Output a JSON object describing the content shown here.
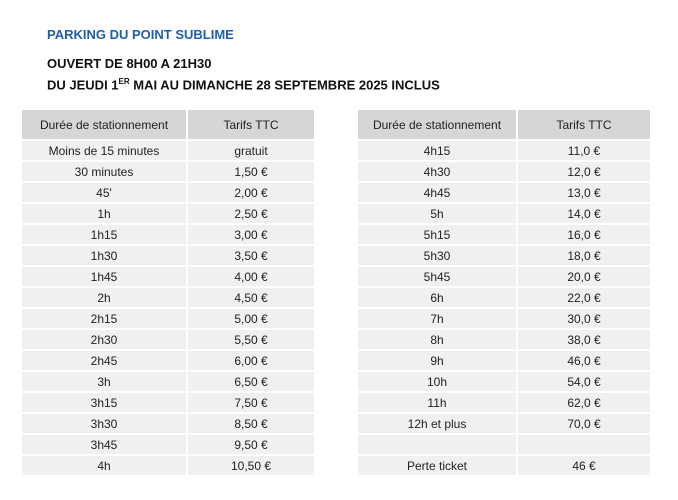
{
  "header": {
    "title": "PARKING DU POINT SUBLIME",
    "hours": "OUVERT DE 8H00 A 21H30",
    "period": [
      "DU JEUDI 1",
      "ER",
      " MAI AU DIMANCHE 28 SEPTEMBRE 2025 INCLUS"
    ]
  },
  "tables": [
    {
      "columns": [
        "Durée de stationnement",
        "Tarifs TTC"
      ],
      "rows": [
        [
          "Moins de 15 minutes",
          "gratuit"
        ],
        [
          "30 minutes",
          "1,50 €"
        ],
        [
          "45'",
          "2,00 €"
        ],
        [
          "1h",
          "2,50 €"
        ],
        [
          "1h15",
          "3,00 €"
        ],
        [
          "1h30",
          "3,50 €"
        ],
        [
          "1h45",
          "4,00 €"
        ],
        [
          "2h",
          "4,50 €"
        ],
        [
          "2h15",
          "5,00 €"
        ],
        [
          "2h30",
          "5,50 €"
        ],
        [
          "2h45",
          "6,00 €"
        ],
        [
          "3h",
          "6,50 €"
        ],
        [
          "3h15",
          "7,50 €"
        ],
        [
          "3h30",
          "8,50 €"
        ],
        [
          "3h45",
          "9,50 €"
        ],
        [
          "4h",
          "10,50 €"
        ]
      ]
    },
    {
      "columns": [
        "Durée de stationnement",
        "Tarifs TTC"
      ],
      "rows": [
        [
          "4h15",
          "11,0 €"
        ],
        [
          "4h30",
          "12,0 €"
        ],
        [
          "4h45",
          "13,0 €"
        ],
        [
          "5h",
          "14,0 €"
        ],
        [
          "5h15",
          "16,0 €"
        ],
        [
          "5h30",
          "18,0 €"
        ],
        [
          "5h45",
          "20,0 €"
        ],
        [
          "6h",
          "22,0 €"
        ],
        [
          "7h",
          "30,0 €"
        ],
        [
          "8h",
          "38,0 €"
        ],
        [
          "9h",
          "46,0 €"
        ],
        [
          "10h",
          "54,0 €"
        ],
        [
          "11h",
          "62,0 €"
        ],
        [
          "12h et plus",
          "70,0 €"
        ],
        [
          null,
          null
        ],
        [
          "Perte ticket",
          "46 €"
        ]
      ]
    }
  ]
}
